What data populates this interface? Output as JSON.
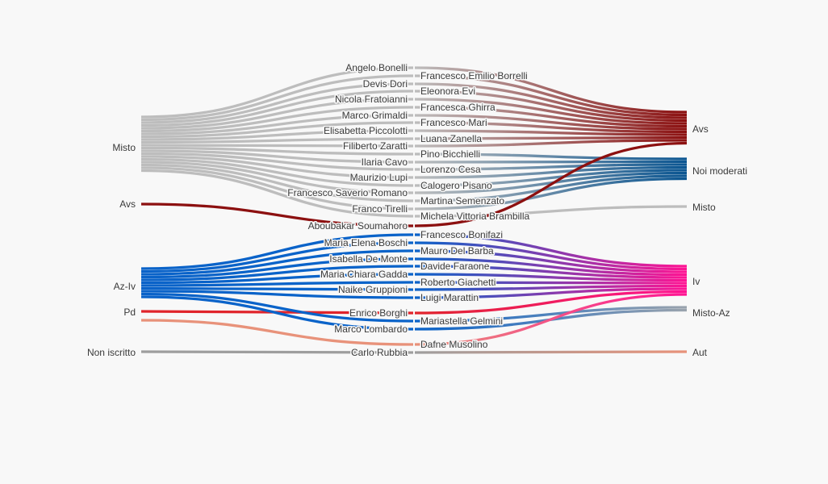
{
  "colors": {
    "Misto": "#bdbdbd",
    "Avs": "#8c1010",
    "Noi moderati": "#0a5591",
    "Az-Iv": "#0a63c9",
    "Iv": "#ff1493",
    "Pd": "#e0242b",
    "Misto-Az": "#9aa3ad",
    "Non iscritto": "#9e9e9e",
    "Aut": "#e8927a",
    "PdFlow": "#e8927a"
  },
  "left_groups": [
    {
      "name": "Misto"
    },
    {
      "name": "Avs"
    },
    {
      "name": "Az-Iv"
    },
    {
      "name": "Pd"
    },
    {
      "name": "Non iscritto"
    }
  ],
  "right_groups": [
    {
      "name": "Avs"
    },
    {
      "name": "Noi moderati"
    },
    {
      "name": "Misto"
    },
    {
      "name": "Iv"
    },
    {
      "name": "Misto-Az"
    },
    {
      "name": "Aut"
    }
  ],
  "people": [
    {
      "name": "Angelo Bonelli",
      "from": "Misto",
      "to": "Avs"
    },
    {
      "name": "Francesco Emilio Borrelli",
      "from": "Misto",
      "to": "Avs"
    },
    {
      "name": "Devis Dori",
      "from": "Misto",
      "to": "Avs"
    },
    {
      "name": "Eleonora Evi",
      "from": "Misto",
      "to": "Avs"
    },
    {
      "name": "Nicola Fratoianni",
      "from": "Misto",
      "to": "Avs"
    },
    {
      "name": "Francesca Ghirra",
      "from": "Misto",
      "to": "Avs"
    },
    {
      "name": "Marco Grimaldi",
      "from": "Misto",
      "to": "Avs"
    },
    {
      "name": "Francesco Mari",
      "from": "Misto",
      "to": "Avs"
    },
    {
      "name": "Elisabetta Piccolotti",
      "from": "Misto",
      "to": "Avs"
    },
    {
      "name": "Luana Zanella",
      "from": "Misto",
      "to": "Avs"
    },
    {
      "name": "Filiberto Zaratti",
      "from": "Misto",
      "to": "Avs"
    },
    {
      "name": "Pino Bicchielli",
      "from": "Misto",
      "to": "Noi moderati"
    },
    {
      "name": "Ilaria Cavo",
      "from": "Misto",
      "to": "Noi moderati"
    },
    {
      "name": "Lorenzo Cesa",
      "from": "Misto",
      "to": "Noi moderati"
    },
    {
      "name": "Maurizio Lupi",
      "from": "Misto",
      "to": "Noi moderati"
    },
    {
      "name": "Calogero Pisano",
      "from": "Misto",
      "to": "Noi moderati"
    },
    {
      "name": "Francesco Saverio Romano",
      "from": "Misto",
      "to": "Noi moderati"
    },
    {
      "name": "Martina Semenzato",
      "from": "Misto",
      "to": "Noi moderati"
    },
    {
      "name": "Franco Tirelli",
      "from": "Misto",
      "to": "Noi moderati"
    },
    {
      "name": "Michela Vittoria Brambilla",
      "from": "Misto",
      "to": "Misto"
    },
    {
      "name": "Aboubakar Soumahoro",
      "from": "Avs",
      "to": "Avs"
    },
    {
      "name": "Francesco Bonifazi",
      "from": "Az-Iv",
      "to": "Iv"
    },
    {
      "name": "Maria Elena Boschi",
      "from": "Az-Iv",
      "to": "Iv"
    },
    {
      "name": "Mauro Del Barba",
      "from": "Az-Iv",
      "to": "Iv"
    },
    {
      "name": "Isabella De Monte",
      "from": "Az-Iv",
      "to": "Iv"
    },
    {
      "name": "Davide Faraone",
      "from": "Az-Iv",
      "to": "Iv"
    },
    {
      "name": "Maria Chiara Gadda",
      "from": "Az-Iv",
      "to": "Iv"
    },
    {
      "name": "Roberto Giachetti",
      "from": "Az-Iv",
      "to": "Iv"
    },
    {
      "name": "Naike Gruppioni",
      "from": "Az-Iv",
      "to": "Iv"
    },
    {
      "name": "Luigi Marattin",
      "from": "Az-Iv",
      "to": "Iv"
    },
    {
      "name": "Enrico Borghi",
      "from": "Pd",
      "to": "Iv"
    },
    {
      "name": "Mariastella Gelmini",
      "from": "Az-Iv",
      "to": "Misto-Az"
    },
    {
      "name": "Marco Lombardo",
      "from": "Az-Iv",
      "to": "Misto-Az"
    },
    {
      "name": "Dafne Musolino",
      "from": "Pd",
      "to": "Iv"
    },
    {
      "name": "Carlo Rubbia",
      "from": "Non iscritto",
      "to": "Aut"
    }
  ]
}
